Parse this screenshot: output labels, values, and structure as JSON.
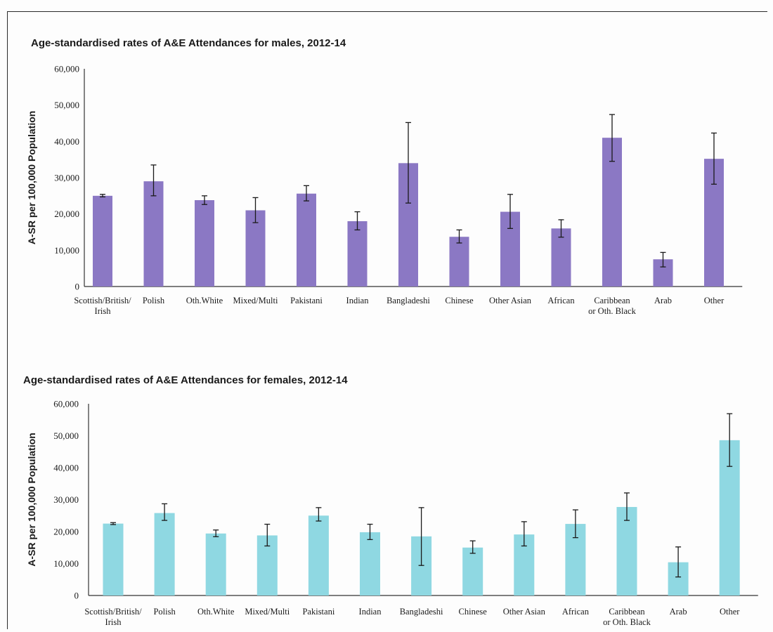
{
  "chart_data": [
    {
      "type": "bar",
      "title": "Age-standardised rates of A&E Attendances for males, 2012-14",
      "ylabel": "A-SR per 100,000 Population",
      "xlabel": "",
      "ylim": [
        0,
        60000
      ],
      "yticks": [
        "0",
        "10,000",
        "20,000",
        "30,000",
        "40,000",
        "50,000",
        "60,000"
      ],
      "bar_color": "#8b78c4",
      "categories": [
        [
          "Scottish/British/",
          "Irish"
        ],
        [
          "Polish"
        ],
        [
          "Oth.White"
        ],
        [
          "Mixed/Multi"
        ],
        [
          "Pakistani"
        ],
        [
          "Indian"
        ],
        [
          "Bangladeshi"
        ],
        [
          "Chinese"
        ],
        [
          "Other Asian"
        ],
        [
          "African"
        ],
        [
          "Caribbean",
          "or Oth. Black"
        ],
        [
          "Arab"
        ],
        [
          "Other"
        ]
      ],
      "values": [
        25000,
        29000,
        23800,
        21000,
        25600,
        18000,
        34000,
        13700,
        20600,
        16000,
        41000,
        7500,
        35200
      ],
      "error_low": [
        24700,
        25000,
        22600,
        17600,
        23600,
        15600,
        23000,
        12000,
        16000,
        13600,
        34500,
        5400,
        28200
      ],
      "error_high": [
        25400,
        33500,
        25000,
        24500,
        27800,
        20600,
        45200,
        15600,
        25400,
        18400,
        47400,
        9400,
        42300
      ],
      "legend": "none"
    },
    {
      "type": "bar",
      "title": "Age-standardised rates of A&E Attendances for females, 2012-14",
      "ylabel": "A-SR per 100,000 Population",
      "xlabel": "",
      "ylim": [
        0,
        60000
      ],
      "yticks": [
        "0",
        "10,000",
        "20,000",
        "30,000",
        "40,000",
        "50,000",
        "60,000"
      ],
      "bar_color": "#8fd8e2",
      "categories": [
        [
          "Scottish/British/",
          "Irish"
        ],
        [
          "Polish"
        ],
        [
          "Oth.White"
        ],
        [
          "Mixed/Multi"
        ],
        [
          "Pakistani"
        ],
        [
          "Indian"
        ],
        [
          "Bangladeshi"
        ],
        [
          "Chinese"
        ],
        [
          "Other Asian"
        ],
        [
          "African"
        ],
        [
          "Caribbean",
          "or Oth. Black"
        ],
        [
          "Arab"
        ],
        [
          "Other"
        ]
      ],
      "values": [
        22500,
        25800,
        19400,
        18800,
        25000,
        19800,
        18500,
        15000,
        19100,
        22400,
        27700,
        10400,
        48600
      ],
      "error_low": [
        22200,
        23500,
        18400,
        15500,
        23300,
        17500,
        9400,
        13200,
        15500,
        18100,
        23500,
        5800,
        40400
      ],
      "error_high": [
        22800,
        28700,
        20500,
        22300,
        27500,
        22300,
        27500,
        17100,
        23100,
        26800,
        32100,
        15200,
        56900
      ],
      "legend": "none"
    }
  ]
}
